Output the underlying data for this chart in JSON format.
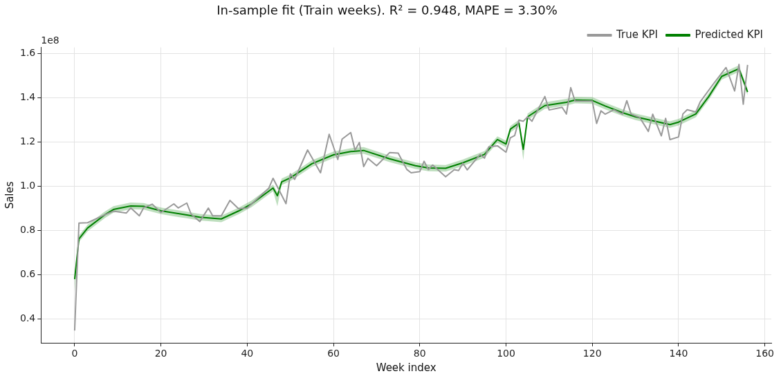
{
  "chart_data": {
    "type": "line",
    "title": "In-sample fit (Train weeks). R² = 0.948, MAPE = 3.30%",
    "xlabel": "Week index",
    "ylabel": "Sales",
    "annotations": [
      "1e8"
    ],
    "xlim": [
      -7.8,
      161.5
    ],
    "xticks": [
      0,
      20,
      40,
      60,
      80,
      100,
      120,
      140,
      160
    ],
    "ylim": [
      0.29,
      1.627
    ],
    "yticks": [
      {
        "value": 0.4,
        "label": "0.4"
      },
      {
        "value": 0.6,
        "label": "0.6"
      },
      {
        "value": 0.8,
        "label": "0.8"
      },
      {
        "value": 1.0,
        "label": "1.0"
      },
      {
        "value": 1.2,
        "label": "1.2"
      },
      {
        "value": 1.4,
        "label": "1.4"
      },
      {
        "value": 1.6,
        "label": "1.6"
      }
    ],
    "grid": true,
    "legend": "top right",
    "marker": "none",
    "line_style": "solid",
    "series": [
      {
        "name": "True KPI",
        "color": "#999999",
        "x": [
          0,
          1,
          3,
          7,
          9,
          12,
          13,
          15,
          16,
          18,
          20,
          23,
          24,
          26,
          27,
          29,
          31,
          32,
          34,
          36,
          38,
          40,
          45,
          46,
          49,
          50,
          51,
          54,
          57,
          59,
          61,
          62,
          64,
          65,
          66,
          67,
          68,
          70,
          73,
          75,
          77,
          78,
          80,
          81,
          82,
          83,
          86,
          88,
          89,
          90,
          91,
          94,
          95,
          96,
          98,
          100,
          101,
          102,
          103,
          104,
          105,
          106,
          109,
          110,
          113,
          114,
          115,
          116,
          120,
          121,
          122,
          123,
          125,
          127,
          128,
          129,
          131,
          133,
          134,
          136,
          137,
          138,
          140,
          141,
          142,
          144,
          145,
          148,
          151,
          153,
          154,
          155,
          156
        ],
        "values": [
          0.346,
          0.832,
          0.834,
          0.87,
          0.886,
          0.878,
          0.901,
          0.865,
          0.902,
          0.918,
          0.88,
          0.919,
          0.901,
          0.923,
          0.873,
          0.839,
          0.9,
          0.865,
          0.865,
          0.935,
          0.897,
          0.9,
          0.99,
          1.035,
          0.92,
          1.055,
          1.03,
          1.163,
          1.06,
          1.234,
          1.12,
          1.212,
          1.242,
          1.162,
          1.197,
          1.088,
          1.125,
          1.092,
          1.151,
          1.149,
          1.075,
          1.06,
          1.065,
          1.112,
          1.074,
          1.095,
          1.042,
          1.074,
          1.07,
          1.103,
          1.073,
          1.143,
          1.126,
          1.177,
          1.182,
          1.153,
          1.218,
          1.228,
          1.298,
          1.293,
          1.313,
          1.293,
          1.405,
          1.344,
          1.356,
          1.326,
          1.445,
          1.384,
          1.384,
          1.283,
          1.34,
          1.325,
          1.345,
          1.325,
          1.386,
          1.325,
          1.31,
          1.247,
          1.325,
          1.227,
          1.306,
          1.21,
          1.222,
          1.326,
          1.345,
          1.335,
          1.38,
          1.46,
          1.536,
          1.43,
          1.55,
          1.37,
          1.548
        ]
      },
      {
        "name": "Predicted KPI",
        "color": "#008000",
        "x": [
          0,
          1,
          3,
          7,
          9,
          13,
          16,
          20,
          24,
          26,
          29,
          34,
          38,
          41,
          46,
          47,
          48,
          50,
          55,
          60,
          64,
          67,
          73,
          79,
          82,
          86,
          90,
          95,
          98,
          100,
          101,
          103,
          104,
          105,
          109,
          114,
          116,
          120,
          123,
          127,
          130,
          138,
          140,
          144,
          147,
          150,
          154,
          156
        ],
        "values": [
          0.579,
          0.761,
          0.81,
          0.87,
          0.894,
          0.91,
          0.908,
          0.888,
          0.875,
          0.869,
          0.859,
          0.851,
          0.887,
          0.919,
          0.991,
          0.956,
          1.019,
          1.037,
          1.101,
          1.141,
          1.156,
          1.161,
          1.123,
          1.092,
          1.082,
          1.08,
          1.105,
          1.143,
          1.21,
          1.19,
          1.257,
          1.285,
          1.166,
          1.313,
          1.364,
          1.379,
          1.389,
          1.387,
          1.362,
          1.332,
          1.313,
          1.278,
          1.289,
          1.326,
          1.405,
          1.496,
          1.531,
          1.425
        ],
        "lower": [
          0.52,
          0.746,
          0.795,
          0.855,
          0.879,
          0.895,
          0.893,
          0.873,
          0.86,
          0.854,
          0.844,
          0.836,
          0.872,
          0.904,
          0.976,
          0.908,
          1.004,
          1.022,
          1.086,
          1.126,
          1.141,
          1.146,
          1.108,
          1.077,
          1.067,
          1.065,
          1.09,
          1.128,
          1.195,
          1.175,
          1.242,
          1.27,
          1.117,
          1.298,
          1.349,
          1.364,
          1.374,
          1.372,
          1.347,
          1.317,
          1.298,
          1.263,
          1.274,
          1.311,
          1.39,
          1.481,
          1.516,
          1.41
        ],
        "upper": [
          0.6,
          0.776,
          0.825,
          0.885,
          0.909,
          0.925,
          0.923,
          0.903,
          0.89,
          0.884,
          0.874,
          0.866,
          0.902,
          0.934,
          1.006,
          0.971,
          1.034,
          1.052,
          1.116,
          1.156,
          1.171,
          1.176,
          1.138,
          1.107,
          1.097,
          1.095,
          1.12,
          1.158,
          1.225,
          1.205,
          1.272,
          1.3,
          1.181,
          1.328,
          1.379,
          1.394,
          1.404,
          1.402,
          1.377,
          1.347,
          1.328,
          1.293,
          1.304,
          1.341,
          1.42,
          1.511,
          1.546,
          1.44
        ]
      }
    ]
  }
}
